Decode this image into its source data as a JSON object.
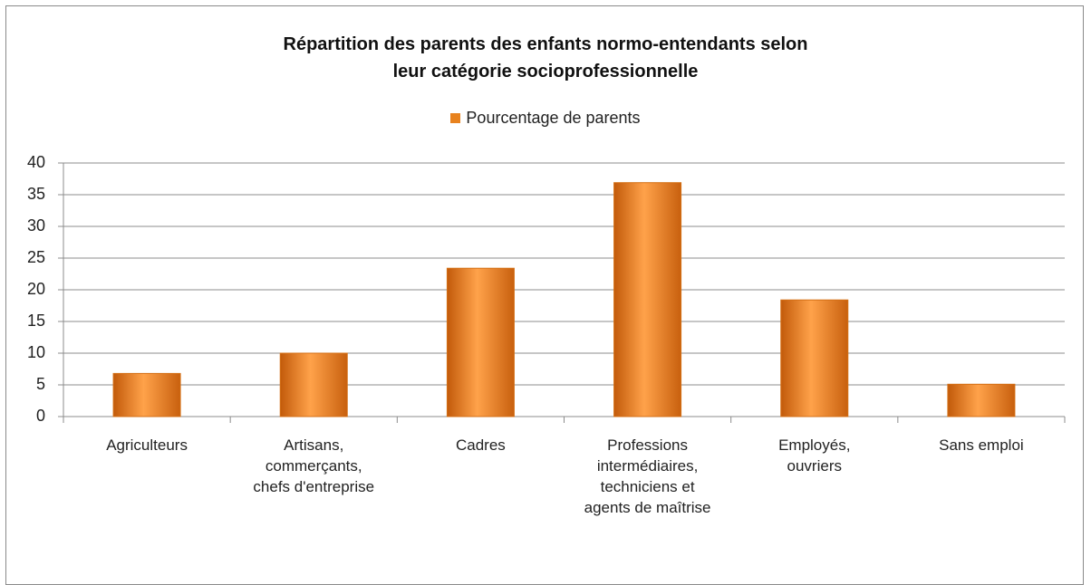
{
  "chart_data": {
    "type": "bar",
    "title": "Répartition des parents des enfants normo-entendants selon leur catégorie socioprofessionnelle",
    "categories": [
      "Agriculteurs",
      "Artisans, commerçants, chefs d'entreprise",
      "Cadres",
      "Professions intermédiaires, techniciens et agents de maîtrise",
      "Employés, ouvriers",
      "Sans emploi"
    ],
    "series": [
      {
        "name": "Pourcentage de parents",
        "color": "#e8821e",
        "values": [
          6.8,
          10,
          23.4,
          36.9,
          18.4,
          5.1
        ]
      }
    ],
    "ylim": [
      0,
      40
    ],
    "yticks": [
      0,
      5,
      10,
      15,
      20,
      25,
      30,
      35,
      40
    ],
    "grid": true,
    "legend": "top"
  }
}
